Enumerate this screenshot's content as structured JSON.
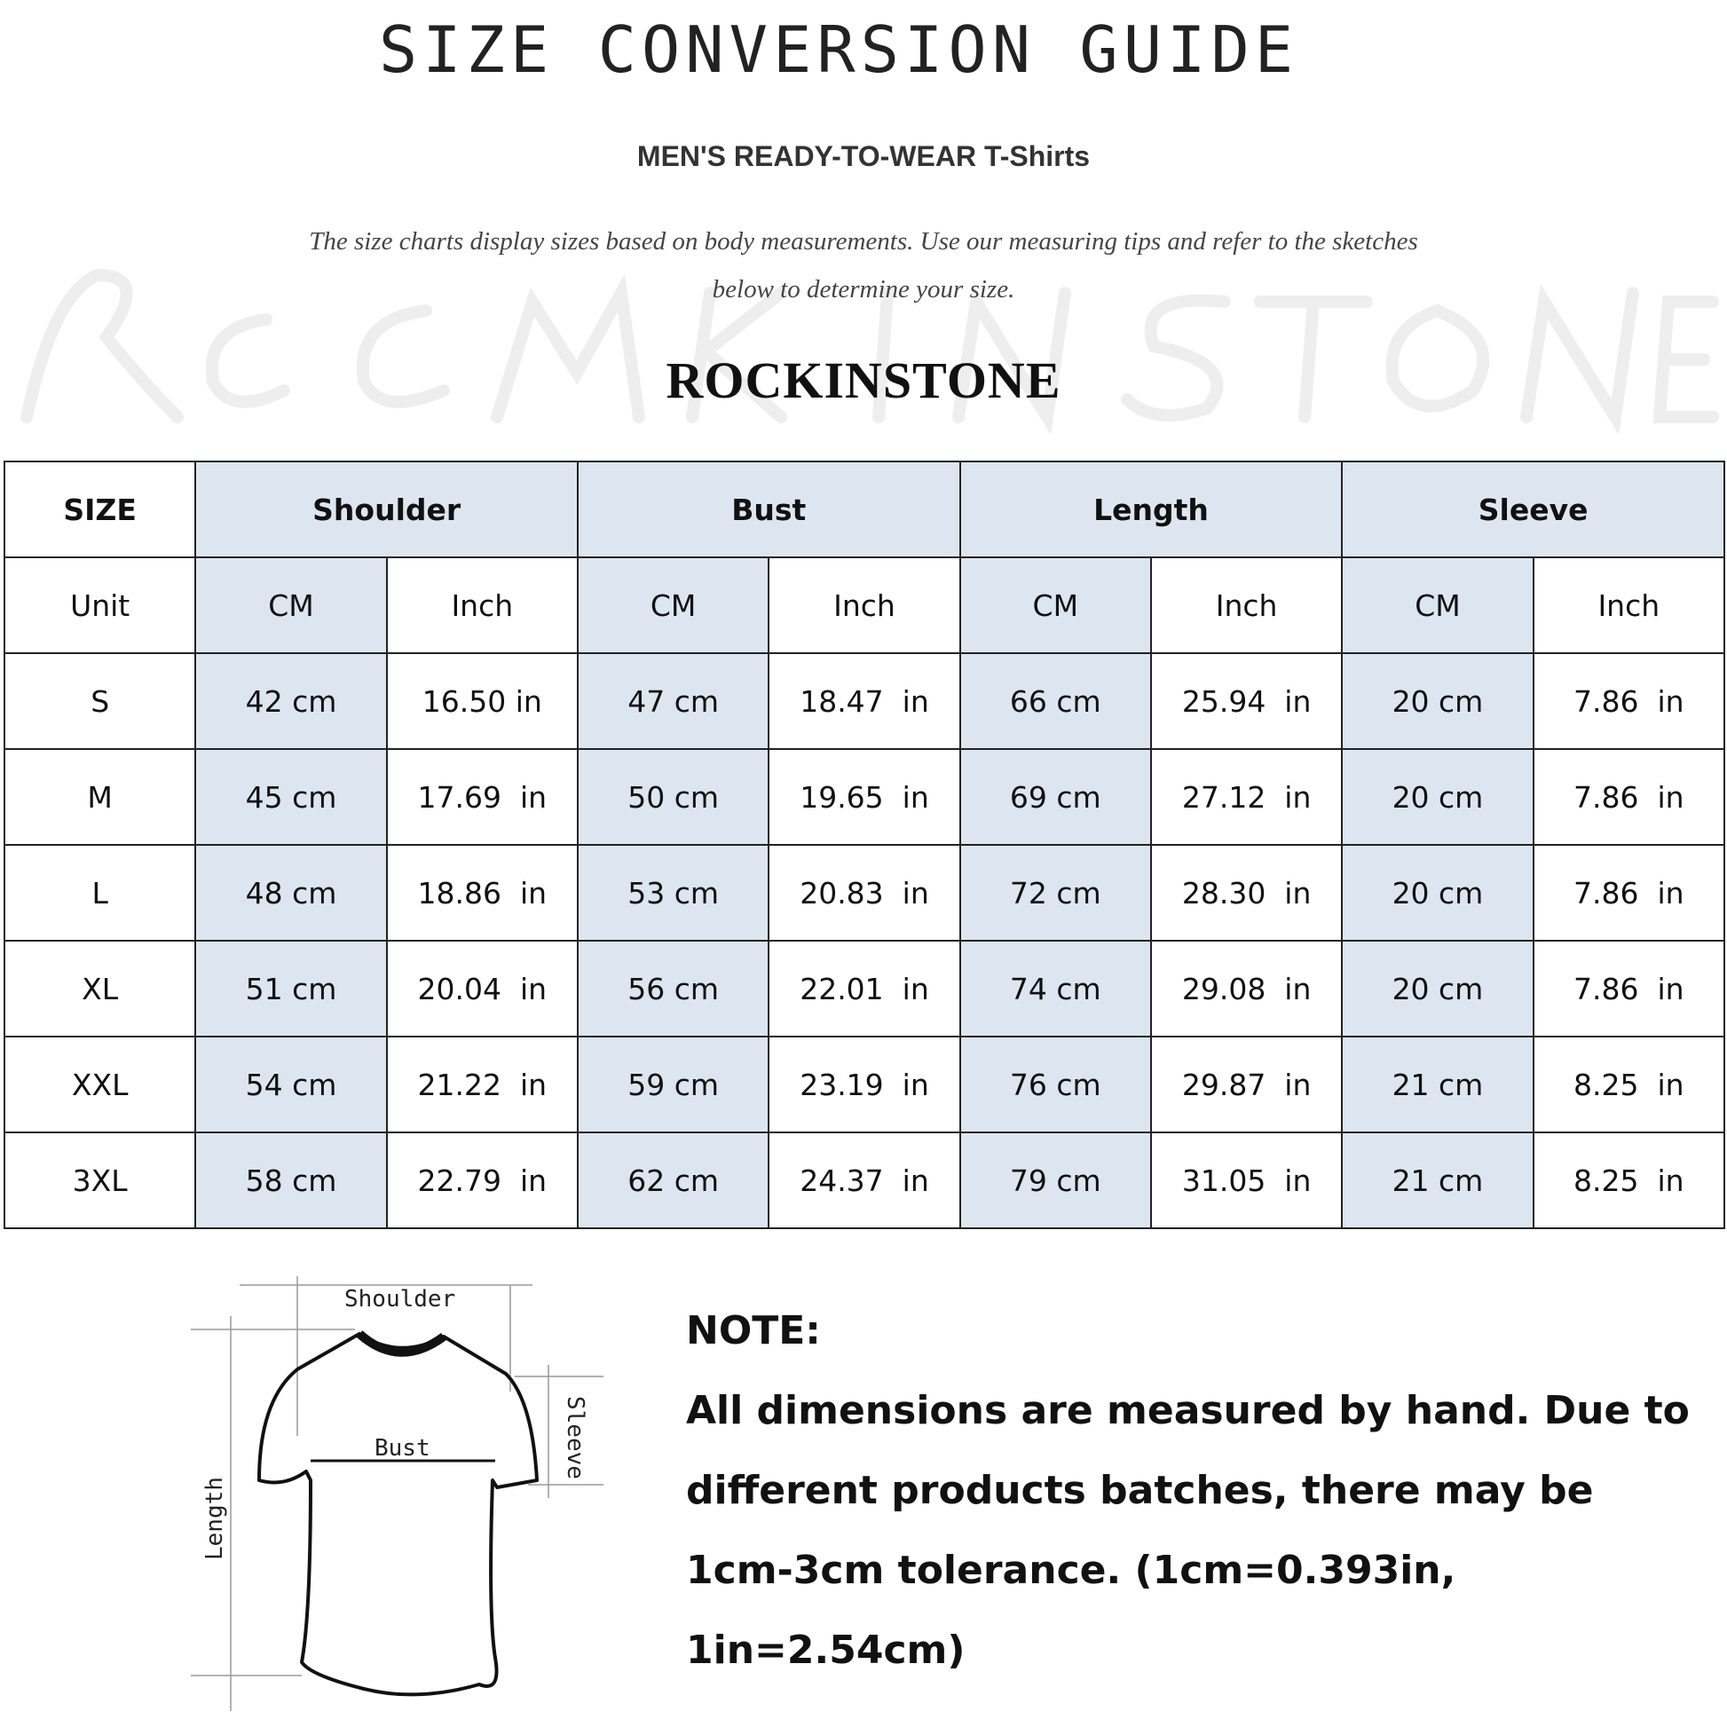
{
  "header": {
    "title": "SIZE CONVERSION GUIDE",
    "subtitle": "MEN'S READY-TO-WEAR T-Shirts",
    "description_line1": "The size charts display sizes based on body measurements. Use our measuring tips and refer to the sketches",
    "description_line2": "below to determine your size.",
    "watermark": "ROCKINSTONE",
    "brand": "ROCKINSTONE"
  },
  "table": {
    "size_label": "SIZE",
    "groups": [
      "Shoulder",
      "Bust",
      "Length",
      "Sleeve"
    ],
    "unit_label": "Unit",
    "units": [
      "CM",
      "Inch",
      "CM",
      "Inch",
      "CM",
      "Inch",
      "CM",
      "Inch"
    ],
    "rows": [
      {
        "size": "S",
        "cells": [
          "42 cm",
          "16.50 in",
          "47 cm",
          "18.47  in",
          "66 cm",
          "25.94  in",
          "20 cm",
          "7.86  in"
        ]
      },
      {
        "size": "M",
        "cells": [
          "45 cm",
          "17.69  in",
          "50 cm",
          "19.65  in",
          "69 cm",
          "27.12  in",
          "20 cm",
          "7.86  in"
        ]
      },
      {
        "size": "L",
        "cells": [
          "48 cm",
          "18.86  in",
          "53 cm",
          "20.83  in",
          "72 cm",
          "28.30  in",
          "20 cm",
          "7.86  in"
        ]
      },
      {
        "size": "XL",
        "cells": [
          "51 cm",
          "20.04  in",
          "56 cm",
          "22.01  in",
          "74 cm",
          "29.08  in",
          "20 cm",
          "7.86  in"
        ]
      },
      {
        "size": "XXL",
        "cells": [
          "54 cm",
          "21.22  in",
          "59 cm",
          "23.19  in",
          "76 cm",
          "29.87  in",
          "21 cm",
          "8.25  in"
        ]
      },
      {
        "size": "3XL",
        "cells": [
          "58 cm",
          "22.79  in",
          "62 cm",
          "24.37  in",
          "79 cm",
          "31.05  in",
          "21 cm",
          "8.25  in"
        ]
      }
    ],
    "cm_column_color": "#dde6f0"
  },
  "diagram": {
    "shoulder": "Shoulder",
    "bust": "Bust",
    "length": "Length",
    "sleeve": "Sleeve"
  },
  "note": {
    "heading": "NOTE:",
    "line1": "All dimensions are measured by hand. Due to",
    "line2": "different products batches, there may be",
    "line3": "1cm-3cm tolerance. (1cm=0.393in, 1in=2.54cm)"
  }
}
